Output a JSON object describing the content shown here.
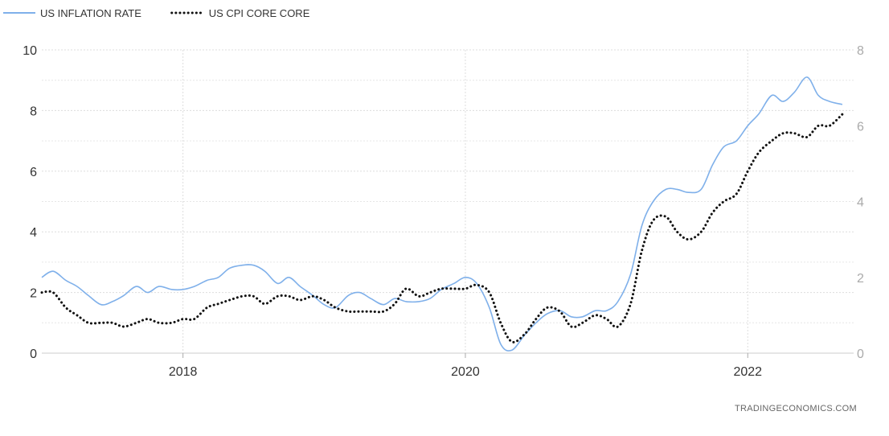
{
  "chart_data": {
    "type": "line",
    "title": "",
    "source": "TRADINGECONOMICS.COM",
    "legend_position": "top-left",
    "grid": true,
    "x_axis": {
      "range": [
        2017.0,
        2022.75
      ],
      "ticks": [
        {
          "value": 2018,
          "label": "2018"
        },
        {
          "value": 2020,
          "label": "2020"
        },
        {
          "value": 2022,
          "label": "2022"
        }
      ]
    },
    "y_left": {
      "range": [
        0,
        10
      ],
      "ticks": [
        {
          "value": 0,
          "label": "0"
        },
        {
          "value": 2,
          "label": "2"
        },
        {
          "value": 4,
          "label": "4"
        },
        {
          "value": 6,
          "label": "6"
        },
        {
          "value": 8,
          "label": "8"
        },
        {
          "value": 10,
          "label": "10"
        }
      ]
    },
    "y_right": {
      "range": [
        0,
        8
      ],
      "ticks": [
        {
          "value": 0,
          "label": "0"
        },
        {
          "value": 2,
          "label": "2"
        },
        {
          "value": 4,
          "label": "4"
        },
        {
          "value": 6,
          "label": "6"
        },
        {
          "value": 8,
          "label": "8"
        }
      ]
    },
    "series": [
      {
        "name": "US INFLATION RATE",
        "axis": "left",
        "color": "#7fb0ea",
        "style": "solid",
        "points": [
          [
            2017.0,
            2.5
          ],
          [
            2017.08,
            2.7
          ],
          [
            2017.17,
            2.4
          ],
          [
            2017.25,
            2.2
          ],
          [
            2017.33,
            1.9
          ],
          [
            2017.42,
            1.6
          ],
          [
            2017.5,
            1.7
          ],
          [
            2017.58,
            1.9
          ],
          [
            2017.67,
            2.2
          ],
          [
            2017.75,
            2.0
          ],
          [
            2017.83,
            2.2
          ],
          [
            2017.92,
            2.1
          ],
          [
            2018.0,
            2.1
          ],
          [
            2018.08,
            2.2
          ],
          [
            2018.17,
            2.4
          ],
          [
            2018.25,
            2.5
          ],
          [
            2018.33,
            2.8
          ],
          [
            2018.42,
            2.9
          ],
          [
            2018.5,
            2.9
          ],
          [
            2018.58,
            2.7
          ],
          [
            2018.67,
            2.3
          ],
          [
            2018.75,
            2.5
          ],
          [
            2018.83,
            2.2
          ],
          [
            2018.92,
            1.9
          ],
          [
            2019.0,
            1.6
          ],
          [
            2019.08,
            1.5
          ],
          [
            2019.17,
            1.9
          ],
          [
            2019.25,
            2.0
          ],
          [
            2019.33,
            1.8
          ],
          [
            2019.42,
            1.6
          ],
          [
            2019.5,
            1.8
          ],
          [
            2019.58,
            1.7
          ],
          [
            2019.67,
            1.7
          ],
          [
            2019.75,
            1.8
          ],
          [
            2019.83,
            2.1
          ],
          [
            2019.92,
            2.3
          ],
          [
            2020.0,
            2.5
          ],
          [
            2020.08,
            2.3
          ],
          [
            2020.17,
            1.5
          ],
          [
            2020.25,
            0.3
          ],
          [
            2020.33,
            0.1
          ],
          [
            2020.42,
            0.6
          ],
          [
            2020.5,
            1.0
          ],
          [
            2020.58,
            1.3
          ],
          [
            2020.67,
            1.4
          ],
          [
            2020.75,
            1.2
          ],
          [
            2020.83,
            1.2
          ],
          [
            2020.92,
            1.4
          ],
          [
            2021.0,
            1.4
          ],
          [
            2021.08,
            1.7
          ],
          [
            2021.17,
            2.6
          ],
          [
            2021.25,
            4.2
          ],
          [
            2021.33,
            5.0
          ],
          [
            2021.42,
            5.4
          ],
          [
            2021.5,
            5.4
          ],
          [
            2021.58,
            5.3
          ],
          [
            2021.67,
            5.4
          ],
          [
            2021.75,
            6.2
          ],
          [
            2021.83,
            6.8
          ],
          [
            2021.92,
            7.0
          ],
          [
            2022.0,
            7.5
          ],
          [
            2022.08,
            7.9
          ],
          [
            2022.17,
            8.5
          ],
          [
            2022.25,
            8.3
          ],
          [
            2022.33,
            8.6
          ],
          [
            2022.42,
            9.1
          ],
          [
            2022.5,
            8.5
          ],
          [
            2022.58,
            8.3
          ],
          [
            2022.67,
            8.2
          ]
        ]
      },
      {
        "name": "US CPI CORE CORE",
        "axis": "right",
        "color": "#111111",
        "style": "dotted",
        "points": [
          [
            2017.0,
            1.6
          ],
          [
            2017.08,
            1.6
          ],
          [
            2017.17,
            1.2
          ],
          [
            2017.25,
            1.0
          ],
          [
            2017.33,
            0.8
          ],
          [
            2017.42,
            0.8
          ],
          [
            2017.5,
            0.8
          ],
          [
            2017.58,
            0.7
          ],
          [
            2017.67,
            0.8
          ],
          [
            2017.75,
            0.9
          ],
          [
            2017.83,
            0.8
          ],
          [
            2017.92,
            0.8
          ],
          [
            2018.0,
            0.9
          ],
          [
            2018.08,
            0.9
          ],
          [
            2018.17,
            1.2
          ],
          [
            2018.25,
            1.3
          ],
          [
            2018.33,
            1.4
          ],
          [
            2018.42,
            1.5
          ],
          [
            2018.5,
            1.5
          ],
          [
            2018.58,
            1.3
          ],
          [
            2018.67,
            1.5
          ],
          [
            2018.75,
            1.5
          ],
          [
            2018.83,
            1.4
          ],
          [
            2018.92,
            1.5
          ],
          [
            2019.0,
            1.4
          ],
          [
            2019.08,
            1.2
          ],
          [
            2019.17,
            1.1
          ],
          [
            2019.25,
            1.1
          ],
          [
            2019.33,
            1.1
          ],
          [
            2019.42,
            1.1
          ],
          [
            2019.5,
            1.3
          ],
          [
            2019.58,
            1.7
          ],
          [
            2019.67,
            1.5
          ],
          [
            2019.75,
            1.6
          ],
          [
            2019.83,
            1.7
          ],
          [
            2019.92,
            1.7
          ],
          [
            2020.0,
            1.7
          ],
          [
            2020.08,
            1.8
          ],
          [
            2020.17,
            1.6
          ],
          [
            2020.25,
            0.8
          ],
          [
            2020.33,
            0.3
          ],
          [
            2020.42,
            0.5
          ],
          [
            2020.5,
            0.9
          ],
          [
            2020.58,
            1.2
          ],
          [
            2020.67,
            1.1
          ],
          [
            2020.75,
            0.7
          ],
          [
            2020.83,
            0.8
          ],
          [
            2020.92,
            1.0
          ],
          [
            2021.0,
            0.9
          ],
          [
            2021.08,
            0.7
          ],
          [
            2021.17,
            1.3
          ],
          [
            2021.25,
            2.7
          ],
          [
            2021.33,
            3.5
          ],
          [
            2021.42,
            3.6
          ],
          [
            2021.5,
            3.2
          ],
          [
            2021.58,
            3.0
          ],
          [
            2021.67,
            3.2
          ],
          [
            2021.75,
            3.7
          ],
          [
            2021.83,
            4.0
          ],
          [
            2021.92,
            4.2
          ],
          [
            2022.0,
            4.8
          ],
          [
            2022.08,
            5.3
          ],
          [
            2022.17,
            5.6
          ],
          [
            2022.25,
            5.8
          ],
          [
            2022.33,
            5.8
          ],
          [
            2022.42,
            5.7
          ],
          [
            2022.5,
            6.0
          ],
          [
            2022.58,
            6.0
          ],
          [
            2022.67,
            6.3
          ]
        ]
      }
    ]
  }
}
